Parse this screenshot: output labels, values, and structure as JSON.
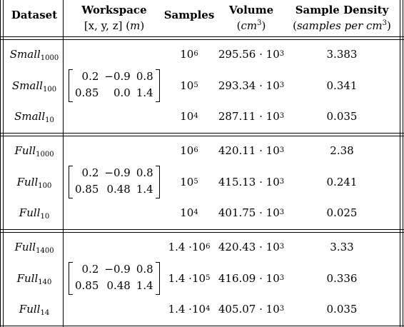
{
  "header": {
    "dataset": "Dataset",
    "workspace": "Workspace",
    "workspace_unit_pre": "[x, y, z] (",
    "workspace_unit_var": "m",
    "workspace_unit_post": ")",
    "samples": "Samples",
    "volume": "Volume",
    "volume_unit_pre": "(",
    "volume_unit_var": "cm",
    "volume_unit_exp": "3",
    "volume_unit_post": ")",
    "density": "Sample Density",
    "density_unit_pre": "(",
    "density_unit_var": "samples per cm",
    "density_unit_exp": "3",
    "density_unit_post": ")"
  },
  "groups": [
    {
      "matrix": [
        [
          "0.2",
          "−0.9",
          "0.8"
        ],
        [
          "0.85",
          "0.0",
          "1.4"
        ]
      ],
      "rows": [
        {
          "name": "Small",
          "sub": "1000",
          "samples_base": "10",
          "samples_exp": "6",
          "samples_coef": "",
          "volume": "295.56 · 10",
          "volume_exp": "3",
          "density": "3.383"
        },
        {
          "name": "Small",
          "sub": "100",
          "samples_base": "10",
          "samples_exp": "5",
          "samples_coef": "",
          "volume": "293.34 · 10",
          "volume_exp": "3",
          "density": "0.341"
        },
        {
          "name": "Small",
          "sub": "10",
          "samples_base": "10",
          "samples_exp": "4",
          "samples_coef": "",
          "volume": "287.11 · 10",
          "volume_exp": "3",
          "density": "0.035"
        }
      ]
    },
    {
      "matrix": [
        [
          "0.2",
          "−0.9",
          "0.8"
        ],
        [
          "0.85",
          "0.48",
          "1.4"
        ]
      ],
      "rows": [
        {
          "name": "Full",
          "sub": "1000",
          "samples_base": "10",
          "samples_exp": "6",
          "samples_coef": "",
          "volume": "420.11 · 10",
          "volume_exp": "3",
          "density": "2.38"
        },
        {
          "name": "Full",
          "sub": "100",
          "samples_base": "10",
          "samples_exp": "5",
          "samples_coef": "",
          "volume": "415.13 · 10",
          "volume_exp": "3",
          "density": "0.241"
        },
        {
          "name": "Full",
          "sub": "10",
          "samples_base": "10",
          "samples_exp": "4",
          "samples_coef": "",
          "volume": "401.75 · 10",
          "volume_exp": "3",
          "density": "0.025"
        }
      ]
    },
    {
      "matrix": [
        [
          "0.2",
          "−0.9",
          "0.8"
        ],
        [
          "0.85",
          "0.48",
          "1.4"
        ]
      ],
      "rows": [
        {
          "name": "Full",
          "sub": "1400",
          "samples_base": "10",
          "samples_exp": "6",
          "samples_coef": "1.4 · ",
          "volume": "420.43 · 10",
          "volume_exp": "3",
          "density": "3.33"
        },
        {
          "name": "Full",
          "sub": "140",
          "samples_base": "10",
          "samples_exp": "5",
          "samples_coef": "1.4 · ",
          "volume": "416.09 · 10",
          "volume_exp": "3",
          "density": "0.336"
        },
        {
          "name": "Full",
          "sub": "14",
          "samples_base": "10",
          "samples_exp": "4",
          "samples_coef": "1.4 · ",
          "volume": "405.07 · 10",
          "volume_exp": "3",
          "density": "0.035"
        }
      ]
    }
  ]
}
